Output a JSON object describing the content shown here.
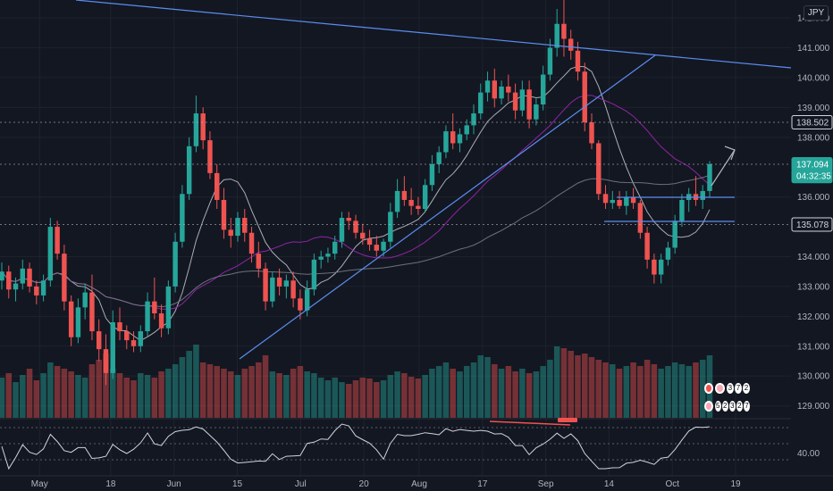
{
  "currency": "JPY",
  "price_axis": {
    "ticks": [
      "142.000",
      "141.000",
      "140.000",
      "139.000",
      "138.000",
      "136.000",
      "134.000",
      "133.000",
      "132.000",
      "131.000",
      "130.000",
      "129.000"
    ],
    "labels": [
      {
        "text": "138.502",
        "value": 138.502,
        "bg": "#131722",
        "fg": "#d1d4dc",
        "border": "#d1d4dc"
      },
      {
        "text": "137.094",
        "value": 137.094,
        "bg": "#26a69a",
        "fg": "#ffffff",
        "border": "#26a69a"
      },
      {
        "text": "04:32:35",
        "value": 136.7,
        "bg": "#26a69a",
        "fg": "#ffffff",
        "border": "#26a69a"
      },
      {
        "text": "135.078",
        "value": 135.078,
        "bg": "#131722",
        "fg": "#d1d4dc",
        "border": "#d1d4dc"
      }
    ],
    "horizontal_levels": [
      138.502,
      137.094,
      135.078
    ]
  },
  "indicator_axis": {
    "ticks": [
      "40.00"
    ]
  },
  "time_axis": {
    "ticks": [
      "May",
      "18",
      "Jun",
      "15",
      "Jul",
      "20",
      "Aug",
      "17",
      "Sep",
      "14",
      "Oct",
      "19"
    ]
  },
  "chart_data": {
    "type": "candlestick",
    "symbol_currency": "JPY",
    "price_range": [
      128.6,
      142.6
    ],
    "candle_colors": {
      "up": "#26a69a",
      "down": "#ef5350"
    },
    "ohlc": [
      [
        133.2,
        133.8,
        132.9,
        133.5
      ],
      [
        133.5,
        133.7,
        132.6,
        132.9
      ],
      [
        132.9,
        133.3,
        132.5,
        133.1
      ],
      [
        133.1,
        133.9,
        132.9,
        133.6
      ],
      [
        133.6,
        133.8,
        132.8,
        133.0
      ],
      [
        133.0,
        133.2,
        132.4,
        132.7
      ],
      [
        132.7,
        133.4,
        132.5,
        133.2
      ],
      [
        133.2,
        135.3,
        133.0,
        135.0
      ],
      [
        135.0,
        135.2,
        133.9,
        134.1
      ],
      [
        134.1,
        134.4,
        132.2,
        132.5
      ],
      [
        132.5,
        132.7,
        131.0,
        131.3
      ],
      [
        131.3,
        132.6,
        131.1,
        132.3
      ],
      [
        132.3,
        133.1,
        131.9,
        132.8
      ],
      [
        132.8,
        133.4,
        131.2,
        131.5
      ],
      [
        131.5,
        131.9,
        130.5,
        130.9
      ],
      [
        130.9,
        131.4,
        129.7,
        130.1
      ],
      [
        130.1,
        132.2,
        129.9,
        131.8
      ],
      [
        131.8,
        132.3,
        131.2,
        131.5
      ],
      [
        131.5,
        131.7,
        130.9,
        131.2
      ],
      [
        131.2,
        131.5,
        130.8,
        131.0
      ],
      [
        131.0,
        131.7,
        130.8,
        131.5
      ],
      [
        131.5,
        132.8,
        131.3,
        132.5
      ],
      [
        132.5,
        133.3,
        131.9,
        132.1
      ],
      [
        132.1,
        132.4,
        131.3,
        131.6
      ],
      [
        131.6,
        133.2,
        131.4,
        133.0
      ],
      [
        133.0,
        134.8,
        132.8,
        134.5
      ],
      [
        134.5,
        136.4,
        134.3,
        136.1
      ],
      [
        136.1,
        138.0,
        135.9,
        137.7
      ],
      [
        137.7,
        139.4,
        137.5,
        138.8
      ],
      [
        138.8,
        139.0,
        137.6,
        137.9
      ],
      [
        137.9,
        138.2,
        136.6,
        136.8
      ],
      [
        136.8,
        137.1,
        135.6,
        135.9
      ],
      [
        135.9,
        136.3,
        134.6,
        134.9
      ],
      [
        134.9,
        135.3,
        134.3,
        134.7
      ],
      [
        134.7,
        135.5,
        134.5,
        135.3
      ],
      [
        135.3,
        135.6,
        134.5,
        134.8
      ],
      [
        134.8,
        135.0,
        133.8,
        134.1
      ],
      [
        134.1,
        134.5,
        133.3,
        133.6
      ],
      [
        133.6,
        133.8,
        132.2,
        132.5
      ],
      [
        132.5,
        133.5,
        132.3,
        133.3
      ],
      [
        133.3,
        133.6,
        132.7,
        133.0
      ],
      [
        133.0,
        133.4,
        132.6,
        133.2
      ],
      [
        133.2,
        133.5,
        132.3,
        132.6
      ],
      [
        132.6,
        132.9,
        131.9,
        132.2
      ],
      [
        132.2,
        133.2,
        132.0,
        132.9
      ],
      [
        132.9,
        134.1,
        132.7,
        133.9
      ],
      [
        133.9,
        134.2,
        133.6,
        134.0
      ],
      [
        134.0,
        134.3,
        133.8,
        134.1
      ],
      [
        134.1,
        134.7,
        133.9,
        134.5
      ],
      [
        134.5,
        135.5,
        134.3,
        135.3
      ],
      [
        135.3,
        135.5,
        134.9,
        135.2
      ],
      [
        135.2,
        135.4,
        134.6,
        134.8
      ],
      [
        134.8,
        135.1,
        134.4,
        134.6
      ],
      [
        134.6,
        134.9,
        134.2,
        134.4
      ],
      [
        134.4,
        134.7,
        134.0,
        134.2
      ],
      [
        134.2,
        134.6,
        134.0,
        134.5
      ],
      [
        134.5,
        135.8,
        134.3,
        135.5
      ],
      [
        135.5,
        136.6,
        135.3,
        136.2
      ],
      [
        136.2,
        136.7,
        135.7,
        135.9
      ],
      [
        135.9,
        136.3,
        135.4,
        135.7
      ],
      [
        135.7,
        136.0,
        135.4,
        135.6
      ],
      [
        135.6,
        136.6,
        135.5,
        136.4
      ],
      [
        136.4,
        137.4,
        136.2,
        137.1
      ],
      [
        137.1,
        137.7,
        136.8,
        137.5
      ],
      [
        137.5,
        138.4,
        137.3,
        138.2
      ],
      [
        138.2,
        138.8,
        137.6,
        137.8
      ],
      [
        137.8,
        138.3,
        137.5,
        138.1
      ],
      [
        138.1,
        138.6,
        137.9,
        138.4
      ],
      [
        138.4,
        139.1,
        138.1,
        138.8
      ],
      [
        138.8,
        139.8,
        138.6,
        139.5
      ],
      [
        139.5,
        140.2,
        139.2,
        139.9
      ],
      [
        139.9,
        140.3,
        139.0,
        139.3
      ],
      [
        139.3,
        139.9,
        139.1,
        139.7
      ],
      [
        139.7,
        140.1,
        139.2,
        139.5
      ],
      [
        139.5,
        139.8,
        138.6,
        138.9
      ],
      [
        138.9,
        139.9,
        138.7,
        139.6
      ],
      [
        139.6,
        139.9,
        138.3,
        138.6
      ],
      [
        138.6,
        139.3,
        138.4,
        139.1
      ],
      [
        139.1,
        140.4,
        138.9,
        140.1
      ],
      [
        140.1,
        141.3,
        139.9,
        141.0
      ],
      [
        141.0,
        142.3,
        140.7,
        141.8
      ],
      [
        141.8,
        142.7,
        140.7,
        141.3
      ],
      [
        141.3,
        141.6,
        140.6,
        140.9
      ],
      [
        140.9,
        141.2,
        139.9,
        140.2
      ],
      [
        140.2,
        140.5,
        138.2,
        138.5
      ],
      [
        138.5,
        138.8,
        137.6,
        137.8
      ],
      [
        137.8,
        137.9,
        135.9,
        136.1
      ],
      [
        136.1,
        136.4,
        135.6,
        135.8
      ],
      [
        135.8,
        136.2,
        135.6,
        135.9
      ],
      [
        135.9,
        136.2,
        135.6,
        135.7
      ],
      [
        135.7,
        136.2,
        135.4,
        136.0
      ],
      [
        136.0,
        136.3,
        135.6,
        135.8
      ],
      [
        135.8,
        135.9,
        134.6,
        134.8
      ],
      [
        134.8,
        135.0,
        133.6,
        133.9
      ],
      [
        133.9,
        134.1,
        133.1,
        133.4
      ],
      [
        133.4,
        134.1,
        133.1,
        133.9
      ],
      [
        133.9,
        134.5,
        133.7,
        134.3
      ],
      [
        134.3,
        135.4,
        134.1,
        135.2
      ],
      [
        135.2,
        136.1,
        135.0,
        135.9
      ],
      [
        135.9,
        136.3,
        135.5,
        136.1
      ],
      [
        136.1,
        136.7,
        135.7,
        135.9
      ],
      [
        135.9,
        136.4,
        135.6,
        136.2
      ],
      [
        136.2,
        137.2,
        136.0,
        137.1
      ]
    ],
    "volumes": [
      0.45,
      0.5,
      0.4,
      0.48,
      0.55,
      0.42,
      0.5,
      0.62,
      0.58,
      0.55,
      0.52,
      0.48,
      0.45,
      0.6,
      0.65,
      0.72,
      0.55,
      0.5,
      0.45,
      0.42,
      0.5,
      0.48,
      0.45,
      0.52,
      0.55,
      0.6,
      0.68,
      0.75,
      0.82,
      0.62,
      0.6,
      0.58,
      0.55,
      0.52,
      0.48,
      0.55,
      0.58,
      0.62,
      0.7,
      0.52,
      0.5,
      0.48,
      0.55,
      0.58,
      0.52,
      0.5,
      0.45,
      0.42,
      0.45,
      0.4,
      0.38,
      0.42,
      0.45,
      0.44,
      0.4,
      0.42,
      0.48,
      0.52,
      0.5,
      0.46,
      0.44,
      0.48,
      0.55,
      0.58,
      0.62,
      0.55,
      0.52,
      0.58,
      0.62,
      0.7,
      0.68,
      0.6,
      0.55,
      0.58,
      0.52,
      0.55,
      0.5,
      0.52,
      0.58,
      0.65,
      0.8,
      0.78,
      0.75,
      0.7,
      0.72,
      0.68,
      0.65,
      0.62,
      0.6,
      0.55,
      0.58,
      0.62,
      0.58,
      0.65,
      0.6,
      0.55,
      0.58,
      0.62,
      0.6,
      0.58,
      0.62,
      0.65,
      0.7
    ]
  },
  "indicator_badges": {
    "row1": [
      "3",
      "7",
      "2"
    ],
    "row2": [
      "5",
      "2",
      "3",
      "2",
      "7"
    ]
  }
}
